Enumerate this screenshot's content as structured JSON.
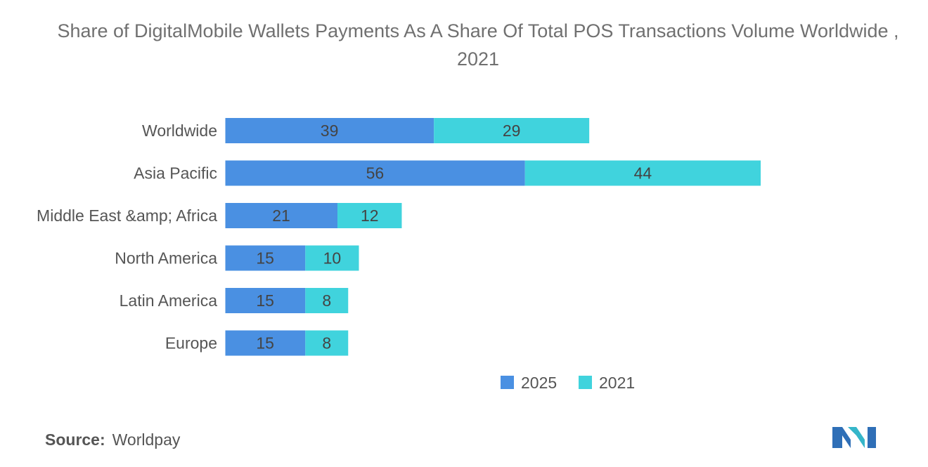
{
  "chart_data": {
    "type": "bar",
    "orientation": "horizontal",
    "stacked": true,
    "title": "Share of DigitalMobile Wallets Payments As A Share Of Total POS Transactions Volume Worldwide , 2021",
    "categories": [
      "Worldwide",
      "Asia Pacific",
      "Middle East &amp; Africa",
      "North America",
      "Latin America",
      "Europe"
    ],
    "series": [
      {
        "name": "2025",
        "color": "#4a90e2",
        "values": [
          39,
          56,
          21,
          15,
          15,
          15
        ]
      },
      {
        "name": "2021",
        "color": "#40d3dd",
        "values": [
          29,
          44,
          12,
          10,
          8,
          8
        ]
      }
    ],
    "xlim": [
      0,
      100
    ],
    "grid": false,
    "legend": "bottom-center",
    "data_labels": true
  },
  "source": {
    "label": "Source:",
    "text": "Worldpay"
  }
}
